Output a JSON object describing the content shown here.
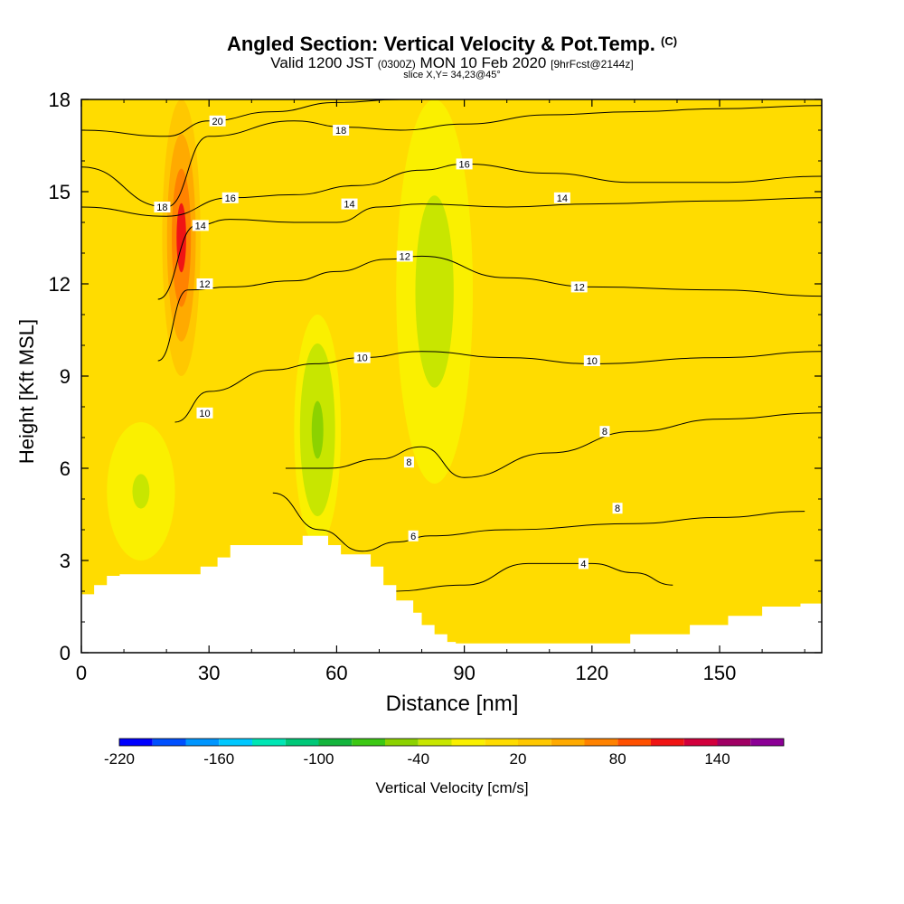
{
  "header": {
    "title_main": "Angled Section: Vertical Velocity & Pot.Temp.",
    "title_unit": "(C)",
    "valid_prefix": "Valid 1200 JST",
    "valid_utc": "(0300Z)",
    "valid_date": "MON 10 Feb 2020",
    "forecast": "[9hrFcst@2144z]",
    "slice": "slice X,Y= 34,23@45°"
  },
  "chart_data": {
    "type": "heatmap",
    "title": "Angled Section: Vertical Velocity & Pot.Temp. (C)",
    "xlabel": "Distance [nm]",
    "ylabel": "Height [Kft MSL]",
    "xlim": [
      0,
      174
    ],
    "ylim": [
      0,
      18
    ],
    "x_ticks": [
      0,
      30,
      60,
      90,
      120,
      150
    ],
    "y_ticks": [
      0,
      3,
      6,
      9,
      12,
      15,
      18
    ],
    "grid": false,
    "colorbar": {
      "label": "Vertical Velocity [cm/s]",
      "min": -220,
      "max": 180,
      "step": 20,
      "tick_labels": [
        -220,
        -160,
        -100,
        -40,
        20,
        80,
        140
      ],
      "colors": [
        "#0000ff",
        "#0050ff",
        "#0096ff",
        "#00c8ff",
        "#00e6b4",
        "#00c878",
        "#14b43c",
        "#3cc814",
        "#8cd200",
        "#c8e600",
        "#faf000",
        "#ffdc00",
        "#ffc800",
        "#ffaa00",
        "#ff8200",
        "#ff5000",
        "#f01414",
        "#d2003c",
        "#a00064",
        "#8c0096"
      ]
    },
    "background_value_cm_s": 5,
    "velocity_regions": [
      {
        "name": "updraft core",
        "x": [
          19,
          28
        ],
        "y": [
          9,
          18
        ],
        "value_cm_s": 100
      },
      {
        "name": "downdraft",
        "x": [
          50,
          61
        ],
        "y": [
          3.5,
          11
        ],
        "value_cm_s": -50
      },
      {
        "name": "downdraft",
        "x": [
          74,
          92
        ],
        "y": [
          5.5,
          18
        ],
        "value_cm_s": -35
      },
      {
        "name": "downdraft",
        "x": [
          6,
          22
        ],
        "y": [
          3,
          7.5
        ],
        "value_cm_s": -25
      }
    ],
    "isentropes": [
      {
        "label": "4",
        "x": [
          73,
          90,
          105,
          120,
          130,
          139
        ],
        "y": [
          2.0,
          2.2,
          2.9,
          2.9,
          2.6,
          2.2
        ]
      },
      {
        "label": "6",
        "x": [
          45,
          56,
          66,
          74,
          82,
          100,
          130,
          150,
          170
        ],
        "y": [
          5.2,
          4.0,
          3.3,
          3.6,
          3.8,
          4.0,
          4.2,
          4.4,
          4.6
        ]
      },
      {
        "label": "8",
        "x": [
          48,
          58,
          70,
          80,
          90,
          110,
          130,
          150,
          174
        ],
        "y": [
          6.0,
          6.0,
          6.3,
          6.7,
          5.7,
          6.5,
          7.2,
          7.6,
          7.8
        ]
      },
      {
        "label": "10",
        "x": [
          22,
          30,
          45,
          55,
          66,
          80,
          100,
          120,
          150,
          174
        ],
        "y": [
          7.5,
          8.5,
          9.2,
          9.4,
          9.6,
          9.8,
          9.6,
          9.4,
          9.6,
          9.8
        ]
      },
      {
        "label": "12",
        "x": [
          18,
          25,
          35,
          50,
          60,
          72,
          80,
          100,
          120,
          150,
          174
        ],
        "y": [
          9.5,
          11.8,
          11.9,
          12.1,
          12.4,
          12.8,
          12.9,
          12.2,
          11.9,
          11.8,
          11.6
        ]
      },
      {
        "label": "14",
        "x": [
          18,
          27,
          35,
          50,
          60,
          70,
          80,
          100,
          120,
          150,
          174
        ],
        "y": [
          11.5,
          13.9,
          14.1,
          14.0,
          14.0,
          14.5,
          14.6,
          14.5,
          14.6,
          14.7,
          14.8
        ]
      },
      {
        "label": "16",
        "x": [
          0,
          20,
          35,
          50,
          65,
          80,
          90,
          110,
          130,
          150,
          174
        ],
        "y": [
          14.5,
          14.2,
          14.8,
          14.9,
          15.2,
          15.7,
          15.9,
          15.6,
          15.3,
          15.3,
          15.5
        ]
      },
      {
        "label": "18",
        "x": [
          0,
          20,
          30,
          50,
          62,
          75,
          90,
          110,
          130,
          150,
          174
        ],
        "y": [
          15.8,
          14.5,
          16.8,
          17.3,
          17.1,
          17.0,
          17.2,
          17.5,
          17.6,
          17.7,
          17.8
        ]
      },
      {
        "label": "20",
        "x": [
          0,
          20,
          30,
          45,
          60,
          75,
          85
        ],
        "y": [
          17.0,
          16.8,
          17.3,
          17.6,
          17.9,
          18.0,
          18.0
        ]
      }
    ],
    "terrain": {
      "x": [
        0,
        3,
        3,
        6,
        6,
        9,
        9,
        28,
        28,
        32,
        32,
        35,
        35,
        52,
        52,
        58,
        58,
        61,
        61,
        68,
        68,
        71,
        71,
        74,
        74,
        78,
        78,
        80,
        80,
        83,
        83,
        86,
        86,
        88,
        88,
        129,
        129,
        143,
        143,
        152,
        152,
        160,
        160,
        169,
        169,
        174
      ],
      "y": [
        1.9,
        1.9,
        2.2,
        2.2,
        2.5,
        2.5,
        2.55,
        2.55,
        2.8,
        2.8,
        3.1,
        3.1,
        3.5,
        3.5,
        3.8,
        3.8,
        3.5,
        3.5,
        3.2,
        3.2,
        2.8,
        2.8,
        2.2,
        2.2,
        1.7,
        1.7,
        1.3,
        1.3,
        0.9,
        0.9,
        0.6,
        0.6,
        0.35,
        0.35,
        0.3,
        0.3,
        0.6,
        0.6,
        0.9,
        0.9,
        1.2,
        1.2,
        1.5,
        1.5,
        1.6,
        1.6
      ]
    },
    "label_positions": [
      {
        "text": "20",
        "x": 32,
        "y": 17.3
      },
      {
        "text": "18",
        "x": 61,
        "y": 17.0
      },
      {
        "text": "16",
        "x": 90,
        "y": 15.9
      },
      {
        "text": "18",
        "x": 19,
        "y": 14.5
      },
      {
        "text": "16",
        "x": 35,
        "y": 14.8
      },
      {
        "text": "14",
        "x": 63,
        "y": 14.6
      },
      {
        "text": "14",
        "x": 113,
        "y": 14.8
      },
      {
        "text": "14",
        "x": 28,
        "y": 13.9
      },
      {
        "text": "12",
        "x": 76,
        "y": 12.9
      },
      {
        "text": "12",
        "x": 29,
        "y": 12.0
      },
      {
        "text": "12",
        "x": 117,
        "y": 11.9
      },
      {
        "text": "10",
        "x": 66,
        "y": 9.6
      },
      {
        "text": "10",
        "x": 120,
        "y": 9.5
      },
      {
        "text": "10",
        "x": 29,
        "y": 7.8
      },
      {
        "text": "8",
        "x": 123,
        "y": 7.2
      },
      {
        "text": "8",
        "x": 77,
        "y": 6.2
      },
      {
        "text": "8",
        "x": 126,
        "y": 4.7
      },
      {
        "text": "6",
        "x": 78,
        "y": 3.8
      },
      {
        "text": "4",
        "x": 118,
        "y": 2.9
      }
    ]
  }
}
